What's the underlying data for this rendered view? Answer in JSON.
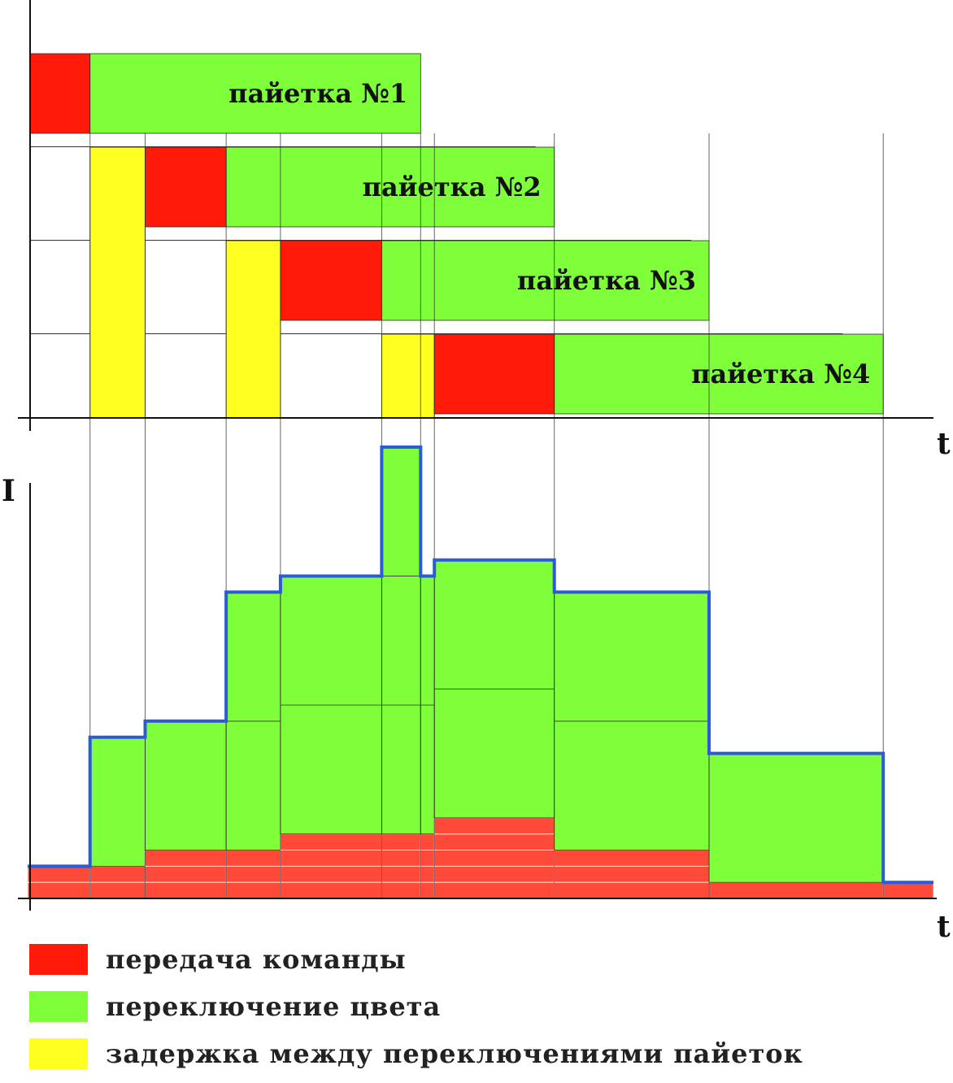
{
  "colors": {
    "command": "#ff1a0a",
    "switch": "#7fff3a",
    "delay": "#ffff22",
    "stack_red": "#ff4a3a",
    "envelope": "#2a5bd8",
    "axis": "#111111",
    "grid": "#333333"
  },
  "axes": {
    "top_time_label": "t",
    "bottom_time_label": "t",
    "current_label": "I"
  },
  "legend": {
    "items": [
      {
        "color_key": "command",
        "label": "передача команды"
      },
      {
        "color_key": "switch",
        "label": "переключение цвета"
      },
      {
        "color_key": "delay",
        "label": "задержка между переключениями пайеток"
      }
    ]
  },
  "chart_data": {
    "type": "timing-diagram",
    "time_range": [
      0,
      112
    ],
    "boundaries": [
      0,
      7.4,
      14.2,
      24.2,
      30.9,
      43.4,
      48.2,
      49.9,
      64.7,
      83.8,
      105.3
    ],
    "schedule": [
      {
        "name": "пайетка №1",
        "label": "пайетка №1",
        "segments": [
          {
            "kind": "command",
            "start": 0,
            "end": 7.4
          },
          {
            "kind": "switch",
            "start": 7.4,
            "end": 48.2
          }
        ]
      },
      {
        "name": "пайетка №2",
        "label": "пайетка №2",
        "segments": [
          {
            "kind": "delay",
            "start": 7.4,
            "end": 14.2
          },
          {
            "kind": "command",
            "start": 14.2,
            "end": 24.2
          },
          {
            "kind": "switch",
            "start": 24.2,
            "end": 64.7
          }
        ]
      },
      {
        "name": "пайетка №3",
        "label": "пайетка №3",
        "segments": [
          {
            "kind": "delay",
            "start": 24.2,
            "end": 30.9
          },
          {
            "kind": "command",
            "start": 30.9,
            "end": 43.4
          },
          {
            "kind": "switch",
            "start": 43.4,
            "end": 83.8
          }
        ]
      },
      {
        "name": "пайетка №4",
        "label": "пайетка №4",
        "segments": [
          {
            "kind": "delay",
            "start": 43.4,
            "end": 49.9
          },
          {
            "kind": "command",
            "start": 49.9,
            "end": 64.7
          },
          {
            "kind": "switch",
            "start": 64.7,
            "end": 105.3
          }
        ]
      }
    ],
    "schedule_guides": [
      {
        "after_row": 1,
        "end": 62.4
      },
      {
        "after_row": 2,
        "end": 81.6
      },
      {
        "after_row": 3,
        "end": 100.3
      }
    ],
    "current_range": [
      0,
      28.5
    ],
    "current": [
      {
        "start": -0.3,
        "end": 7.4,
        "layers": [
          {
            "kind": "red",
            "value": 1
          },
          {
            "kind": "red",
            "value": 1
          }
        ]
      },
      {
        "start": 7.4,
        "end": 14.2,
        "layers": [
          {
            "kind": "red",
            "value": 1
          },
          {
            "kind": "red",
            "value": 1
          },
          {
            "kind": "switch",
            "value": 8
          }
        ]
      },
      {
        "start": 14.2,
        "end": 24.2,
        "layers": [
          {
            "kind": "red",
            "value": 1
          },
          {
            "kind": "red",
            "value": 1
          },
          {
            "kind": "red",
            "value": 1
          },
          {
            "kind": "switch",
            "value": 8
          }
        ]
      },
      {
        "start": 24.2,
        "end": 30.9,
        "layers": [
          {
            "kind": "red",
            "value": 1
          },
          {
            "kind": "red",
            "value": 1
          },
          {
            "kind": "red",
            "value": 1
          },
          {
            "kind": "switch",
            "value": 8
          },
          {
            "kind": "switch",
            "value": 8
          }
        ]
      },
      {
        "start": 30.9,
        "end": 43.4,
        "layers": [
          {
            "kind": "red",
            "value": 1
          },
          {
            "kind": "red",
            "value": 1
          },
          {
            "kind": "red",
            "value": 1
          },
          {
            "kind": "red",
            "value": 1
          },
          {
            "kind": "switch",
            "value": 8
          },
          {
            "kind": "switch",
            "value": 8
          }
        ]
      },
      {
        "start": 43.4,
        "end": 48.2,
        "layers": [
          {
            "kind": "red",
            "value": 1
          },
          {
            "kind": "red",
            "value": 1
          },
          {
            "kind": "red",
            "value": 1
          },
          {
            "kind": "red",
            "value": 1
          },
          {
            "kind": "switch",
            "value": 8
          },
          {
            "kind": "switch",
            "value": 8
          },
          {
            "kind": "switch",
            "value": 8
          }
        ]
      },
      {
        "start": 48.2,
        "end": 49.9,
        "layers": [
          {
            "kind": "red",
            "value": 1
          },
          {
            "kind": "red",
            "value": 1
          },
          {
            "kind": "red",
            "value": 1
          },
          {
            "kind": "red",
            "value": 1
          },
          {
            "kind": "switch",
            "value": 8
          },
          {
            "kind": "switch",
            "value": 8
          }
        ]
      },
      {
        "start": 49.9,
        "end": 64.7,
        "layers": [
          {
            "kind": "red",
            "value": 1
          },
          {
            "kind": "red",
            "value": 1
          },
          {
            "kind": "red",
            "value": 1
          },
          {
            "kind": "red",
            "value": 1
          },
          {
            "kind": "red",
            "value": 1
          },
          {
            "kind": "switch",
            "value": 8
          },
          {
            "kind": "switch",
            "value": 8
          }
        ]
      },
      {
        "start": 64.7,
        "end": 83.8,
        "layers": [
          {
            "kind": "red",
            "value": 1
          },
          {
            "kind": "red",
            "value": 1
          },
          {
            "kind": "red",
            "value": 1
          },
          {
            "kind": "switch",
            "value": 8
          },
          {
            "kind": "switch",
            "value": 8
          }
        ]
      },
      {
        "start": 83.8,
        "end": 105.3,
        "layers": [
          {
            "kind": "red",
            "value": 1
          },
          {
            "kind": "switch",
            "value": 8
          }
        ]
      },
      {
        "start": 105.3,
        "end": 111.5,
        "layers": [
          {
            "kind": "red",
            "value": 1
          }
        ]
      }
    ]
  }
}
